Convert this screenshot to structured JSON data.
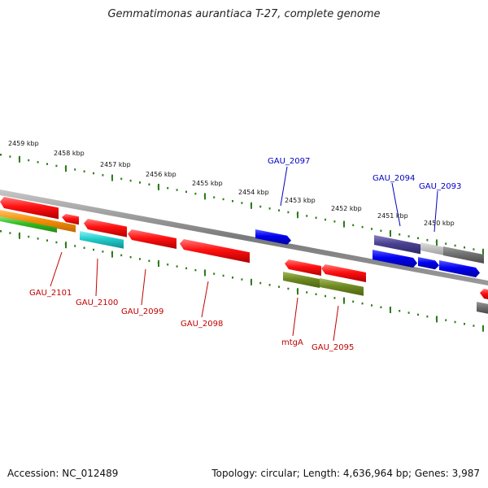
{
  "title": "Gemmatimonas aurantiaca T-27, complete genome",
  "footer": {
    "accession": "Accession: NC_012489",
    "summary": "Topology: circular; Length: 4,636,964 bp; Genes: 3,987"
  },
  "colors": {
    "backbone": "#8a8a8a",
    "tick": "#2e7d1c",
    "forward_label": "#0000c0",
    "reverse_label": "#c00000"
  },
  "scale_ticks": [
    "2459 kbp",
    "2458 kbp",
    "2457 kbp",
    "2456 kbp",
    "2455 kbp",
    "2454 kbp",
    "2453 kbp",
    "2452 kbp",
    "2451 kbp",
    "2450 kbp"
  ],
  "forward_labels": [
    "GAU_2097",
    "GAU_2094",
    "GAU_2093"
  ],
  "reverse_labels": [
    "GAU_2101",
    "GAU_2100",
    "GAU_2099",
    "GAU_2098",
    "mtgA",
    "GAU_2095"
  ],
  "features": [
    {
      "strand": "reverse",
      "color": "red"
    },
    {
      "strand": "reverse",
      "color": "red"
    },
    {
      "strand": "reverse",
      "color": "red"
    },
    {
      "strand": "reverse",
      "color": "red"
    },
    {
      "strand": "reverse",
      "color": "red"
    },
    {
      "strand": "reverse",
      "color": "red"
    },
    {
      "strand": "reverse",
      "color": "red"
    },
    {
      "strand": "reverse",
      "color": "orange"
    },
    {
      "strand": "reverse",
      "color": "green"
    },
    {
      "strand": "reverse",
      "color": "cyan"
    },
    {
      "strand": "reverse",
      "color": "olive"
    },
    {
      "strand": "reverse",
      "color": "olive"
    },
    {
      "strand": "reverse",
      "color": "gray"
    },
    {
      "strand": "forward",
      "color": "blue"
    },
    {
      "strand": "forward",
      "color": "slate"
    },
    {
      "strand": "forward",
      "color": "silver"
    },
    {
      "strand": "forward",
      "color": "gray"
    },
    {
      "strand": "forward",
      "color": "blue"
    },
    {
      "strand": "forward",
      "color": "blue"
    },
    {
      "strand": "forward",
      "color": "blue"
    }
  ]
}
